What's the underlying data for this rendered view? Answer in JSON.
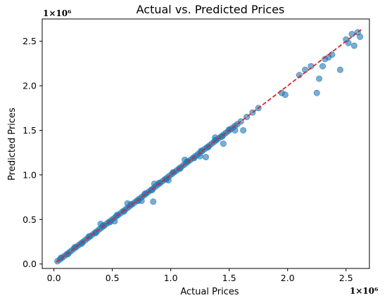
{
  "chart_data": {
    "type": "scatter",
    "title": "Actual vs. Predicted Prices",
    "xlabel": "Actual Prices",
    "ylabel": "Predicted Prices",
    "x_multiplier": "1×10⁶",
    "y_multiplier": "1×10⁶",
    "xlim": [
      -0.1,
      2.7
    ],
    "ylim": [
      -0.05,
      2.75
    ],
    "xticks": [
      0.0,
      0.5,
      1.0,
      1.5,
      2.0,
      2.5
    ],
    "yticks": [
      0.0,
      0.5,
      1.0,
      1.5,
      2.0,
      2.5
    ],
    "xtick_labels": [
      "0.0",
      "0.5",
      "1.0",
      "1.5",
      "2.0",
      "2.5"
    ],
    "ytick_labels": [
      "0.0",
      "0.5",
      "1.0",
      "1.5",
      "2.0",
      "2.5"
    ],
    "grid": false,
    "series": [
      {
        "color": "#1f77b4",
        "opacity": 0.6,
        "x": [
          0.03,
          0.05,
          0.07,
          0.09,
          0.11,
          0.13,
          0.15,
          0.17,
          0.19,
          0.21,
          0.23,
          0.25,
          0.27,
          0.29,
          0.31,
          0.33,
          0.35,
          0.37,
          0.39,
          0.41,
          0.43,
          0.45,
          0.47,
          0.49,
          0.51,
          0.53,
          0.55,
          0.57,
          0.59,
          0.61,
          0.63,
          0.65,
          0.67,
          0.69,
          0.71,
          0.73,
          0.75,
          0.77,
          0.79,
          0.81,
          0.83,
          0.85,
          0.87,
          0.89,
          0.91,
          0.93,
          0.95,
          0.97,
          0.99,
          1.01,
          1.03,
          1.05,
          1.07,
          1.09,
          1.11,
          1.13,
          1.15,
          1.17,
          1.19,
          1.21,
          1.23,
          1.25,
          1.27,
          1.29,
          1.31,
          1.33,
          1.35,
          1.37,
          1.39,
          1.41,
          1.43,
          1.45,
          1.47,
          1.49,
          1.51,
          1.53,
          1.55,
          1.57,
          1.6,
          1.65,
          1.7,
          1.75,
          0.06,
          0.12,
          0.18,
          0.24,
          0.3,
          0.36,
          0.42,
          0.48,
          0.54,
          0.6,
          0.66,
          0.72,
          0.78,
          0.84,
          0.9,
          0.96,
          1.02,
          1.08,
          1.14,
          1.2,
          1.26,
          1.32,
          1.38,
          1.44,
          1.5,
          0.4,
          0.52,
          0.63,
          0.75,
          0.86,
          0.98,
          1.12,
          1.25,
          1.38,
          1.55,
          0.85,
          1.3,
          1.45,
          1.62,
          1.95,
          1.98,
          2.1,
          2.15,
          2.2,
          2.25,
          2.27,
          2.3,
          2.32,
          2.35,
          2.38,
          2.45,
          2.5,
          2.52,
          2.55,
          2.57,
          2.6,
          2.62
        ],
        "y": [
          0.03,
          0.05,
          0.07,
          0.09,
          0.11,
          0.13,
          0.15,
          0.17,
          0.19,
          0.21,
          0.23,
          0.25,
          0.27,
          0.29,
          0.31,
          0.33,
          0.35,
          0.37,
          0.39,
          0.41,
          0.43,
          0.45,
          0.47,
          0.49,
          0.51,
          0.53,
          0.55,
          0.57,
          0.59,
          0.61,
          0.63,
          0.65,
          0.67,
          0.69,
          0.71,
          0.73,
          0.75,
          0.77,
          0.79,
          0.81,
          0.83,
          0.85,
          0.87,
          0.89,
          0.91,
          0.93,
          0.95,
          0.97,
          0.99,
          1.01,
          1.03,
          1.05,
          1.07,
          1.09,
          1.11,
          1.13,
          1.15,
          1.17,
          1.19,
          1.21,
          1.23,
          1.25,
          1.27,
          1.29,
          1.31,
          1.33,
          1.35,
          1.37,
          1.39,
          1.41,
          1.43,
          1.45,
          1.47,
          1.49,
          1.51,
          1.53,
          1.55,
          1.57,
          1.6,
          1.65,
          1.7,
          1.75,
          0.07,
          0.11,
          0.19,
          0.23,
          0.31,
          0.35,
          0.43,
          0.47,
          0.55,
          0.59,
          0.67,
          0.71,
          0.79,
          0.83,
          0.91,
          0.95,
          1.03,
          1.07,
          1.15,
          1.19,
          1.27,
          1.31,
          1.39,
          1.43,
          1.51,
          0.45,
          0.48,
          0.68,
          0.71,
          0.9,
          0.94,
          1.17,
          1.21,
          1.42,
          1.5,
          0.7,
          1.2,
          1.35,
          1.5,
          1.92,
          1.9,
          2.12,
          2.18,
          2.22,
          1.92,
          2.08,
          2.22,
          2.3,
          2.32,
          2.35,
          2.18,
          2.52,
          2.48,
          2.58,
          2.45,
          2.6,
          2.55
        ]
      }
    ],
    "reference_line": {
      "from": [
        0.02,
        0.02
      ],
      "to": [
        2.63,
        2.63
      ],
      "color": "#d62728",
      "style": "dashed"
    }
  }
}
